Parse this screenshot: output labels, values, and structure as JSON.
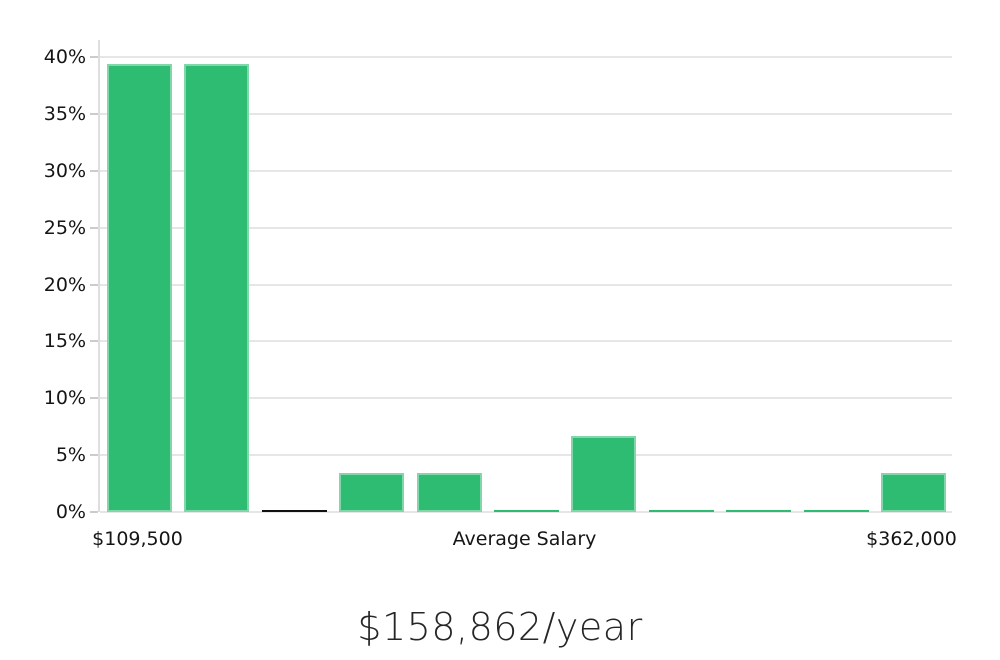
{
  "chart_data": {
    "type": "bar",
    "title": "$158,862/year",
    "description": "Salary distribution histogram",
    "ylim": [
      0,
      40
    ],
    "y_step": 5,
    "y_tick_labels": [
      "40%",
      "35%",
      "30%",
      "25%",
      "20%",
      "15%",
      "10%",
      "5%",
      "0%"
    ],
    "values": [
      39.4,
      39.4,
      0.2,
      3.4,
      3.4,
      0.1,
      6.7,
      0.1,
      0.1,
      0.1,
      3.4
    ],
    "bar_colors": [
      "green",
      "green",
      "black",
      "green",
      "green",
      "green",
      "green",
      "green",
      "green",
      "green",
      "green"
    ],
    "x_axis_labels": [
      {
        "label": "$109,500",
        "bar_index": 0
      },
      {
        "label": "Average Salary",
        "bar_index": 5
      },
      {
        "label": "$362,000",
        "bar_index": 10
      }
    ],
    "grid": true,
    "legend": "none",
    "colors": {
      "bar_green": "#2ebc72",
      "bar_black": "#111111",
      "gridline": "#e6e6e6",
      "axis": "#cccccc",
      "label_text": "#151515",
      "title_text": "#262626"
    }
  }
}
